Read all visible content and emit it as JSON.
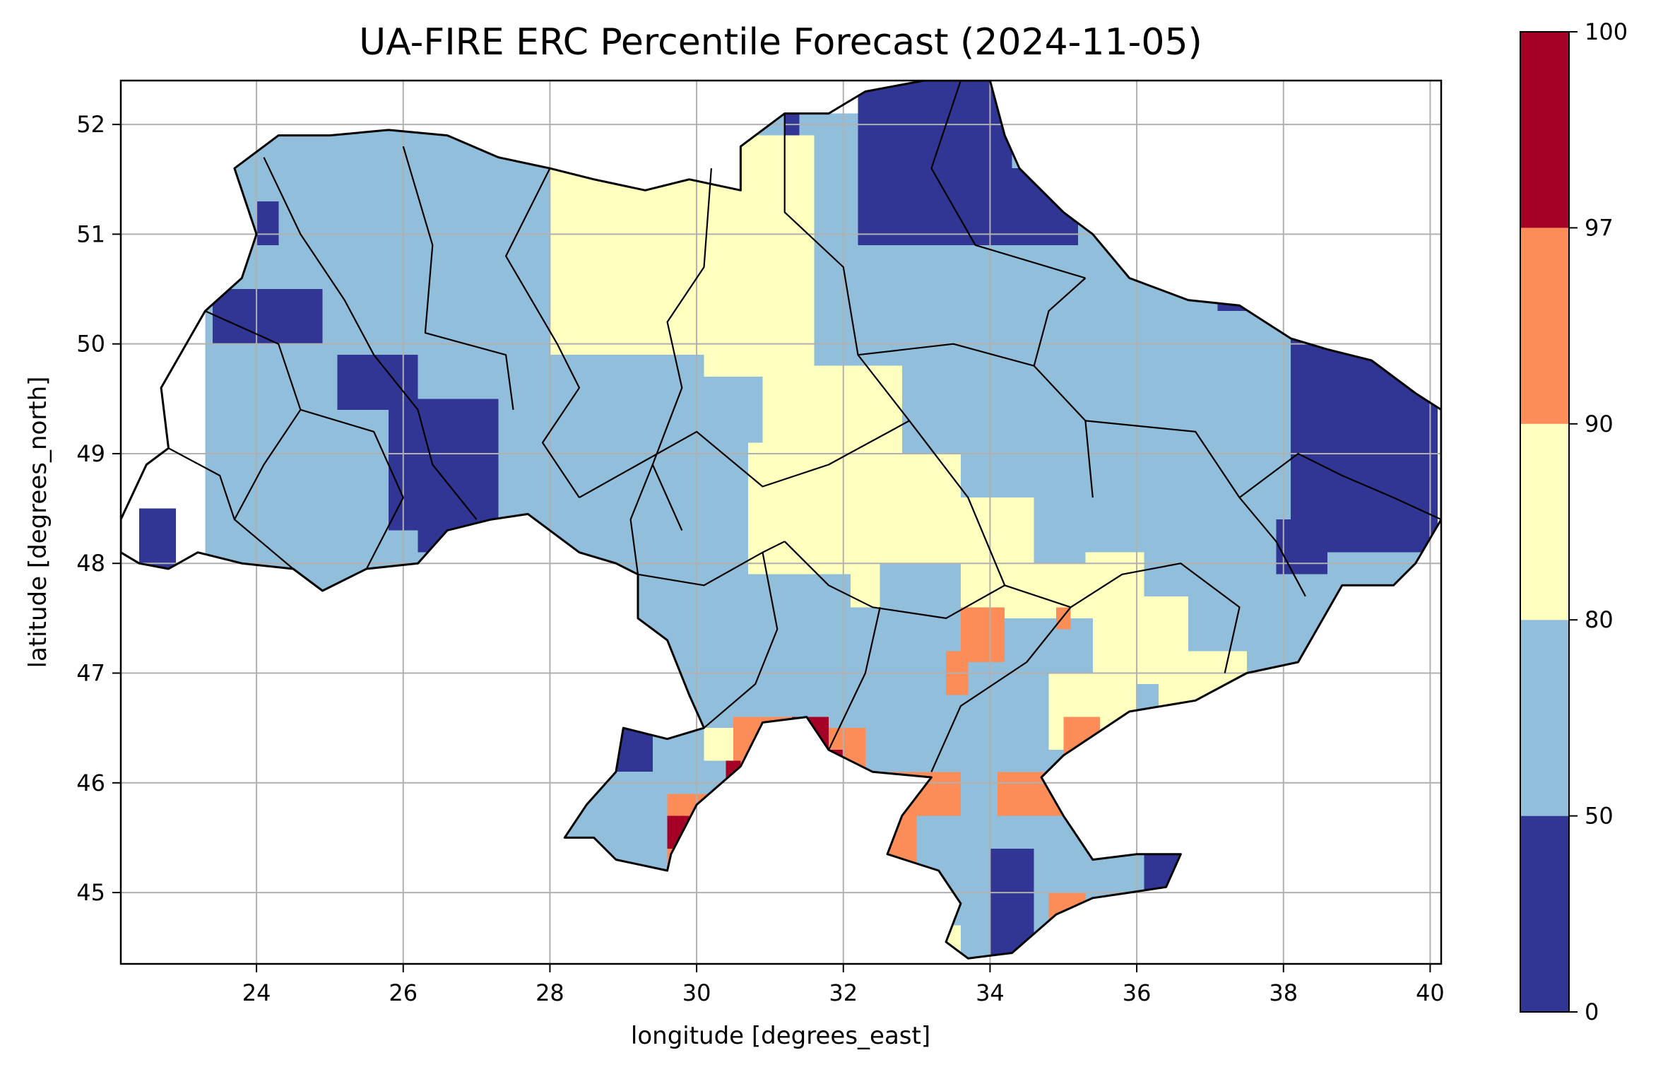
{
  "chart_data": {
    "type": "heatmap",
    "title": "UA-FIRE ERC Percentile Forecast (2024-11-05)",
    "xlabel": "longitude [degrees_east]",
    "ylabel": "latitude [degrees_north]",
    "xlim": [
      22.15,
      40.15
    ],
    "ylim": [
      44.35,
      52.4
    ],
    "x_ticks": [
      "24",
      "26",
      "28",
      "30",
      "32",
      "34",
      "36",
      "38",
      "40"
    ],
    "y_ticks": [
      "45",
      "46",
      "47",
      "48",
      "49",
      "50",
      "51",
      "52"
    ],
    "grid": true,
    "colorbar": {
      "bounds": [
        0,
        50,
        80,
        90,
        97,
        100
      ],
      "tick_labels": [
        "0",
        "50",
        "80",
        "90",
        "97",
        "100"
      ],
      "categories": [
        {
          "range": "0-50",
          "color": "#313695"
        },
        {
          "range": "50-80",
          "color": "#91bfdb"
        },
        {
          "range": "80-90",
          "color": "#ffffbf"
        },
        {
          "range": "90-97",
          "color": "#fc8d59"
        },
        {
          "range": "97-100",
          "color": "#a50026"
        }
      ]
    },
    "regions": [
      {
        "class": 1,
        "cells": [
          [
            23.3,
            52.1,
            40.1,
            44.35
          ]
        ]
      },
      {
        "class": 0,
        "patches": [
          [
            32.2,
            52.5,
            34.3,
            50.9
          ],
          [
            34.3,
            51.6,
            35.2,
            50.9
          ],
          [
            23.4,
            50.5,
            24.9,
            50.0
          ],
          [
            25.1,
            49.9,
            26.2,
            49.4
          ],
          [
            25.8,
            49.5,
            27.3,
            48.3
          ],
          [
            26.2,
            48.5,
            27.3,
            48.1
          ],
          [
            22.4,
            48.5,
            22.9,
            47.9
          ],
          [
            38.1,
            50.2,
            40.1,
            48.1
          ],
          [
            37.9,
            48.4,
            38.6,
            47.9
          ],
          [
            34.0,
            45.4,
            34.6,
            44.4
          ],
          [
            36.1,
            45.5,
            36.8,
            45.0
          ],
          [
            28.9,
            46.5,
            29.4,
            46.1
          ],
          [
            37.1,
            50.7,
            37.5,
            50.3
          ],
          [
            24.0,
            51.3,
            24.3,
            50.9
          ],
          [
            31.2,
            52.1,
            31.4,
            51.9
          ]
        ]
      },
      {
        "class": 2,
        "patches": [
          [
            28.0,
            51.7,
            30.1,
            49.9
          ],
          [
            30.1,
            51.9,
            31.6,
            49.7
          ],
          [
            30.9,
            49.8,
            32.8,
            48.9
          ],
          [
            30.7,
            49.1,
            32.4,
            47.9
          ],
          [
            32.4,
            49.0,
            33.6,
            48.0
          ],
          [
            33.6,
            48.6,
            34.6,
            47.5
          ],
          [
            34.4,
            48.0,
            35.4,
            47.5
          ],
          [
            35.3,
            48.1,
            36.1,
            47.6
          ],
          [
            35.4,
            47.7,
            36.7,
            46.9
          ],
          [
            36.3,
            47.2,
            37.5,
            46.6
          ],
          [
            34.8,
            47.0,
            36.0,
            46.3
          ],
          [
            33.2,
            44.7,
            33.6,
            44.4
          ],
          [
            30.1,
            46.5,
            30.7,
            46.2
          ],
          [
            28.8,
            52.0,
            29.3,
            51.8
          ],
          [
            32.1,
            48.0,
            32.5,
            47.6
          ]
        ]
      },
      {
        "class": 3,
        "patches": [
          [
            30.5,
            46.6,
            31.6,
            46.1
          ],
          [
            31.6,
            46.5,
            32.3,
            46.1
          ],
          [
            32.0,
            46.1,
            33.6,
            45.7
          ],
          [
            32.5,
            45.9,
            33.0,
            45.2
          ],
          [
            34.1,
            46.1,
            35.3,
            45.7
          ],
          [
            35.0,
            46.6,
            35.5,
            46.2
          ],
          [
            33.6,
            47.6,
            34.2,
            47.1
          ],
          [
            34.9,
            47.6,
            35.1,
            47.4
          ],
          [
            29.6,
            45.9,
            30.2,
            45.6
          ],
          [
            29.6,
            45.4,
            29.9,
            45.1
          ],
          [
            34.8,
            45.0,
            35.3,
            44.6
          ],
          [
            33.4,
            47.2,
            33.7,
            46.8
          ]
        ]
      },
      {
        "class": 4,
        "patches": [
          [
            31.3,
            46.6,
            31.8,
            46.1
          ],
          [
            31.8,
            46.3,
            32.0,
            46.1
          ],
          [
            29.6,
            45.7,
            29.9,
            45.4
          ],
          [
            30.4,
            46.2,
            30.6,
            45.9
          ]
        ]
      }
    ]
  }
}
